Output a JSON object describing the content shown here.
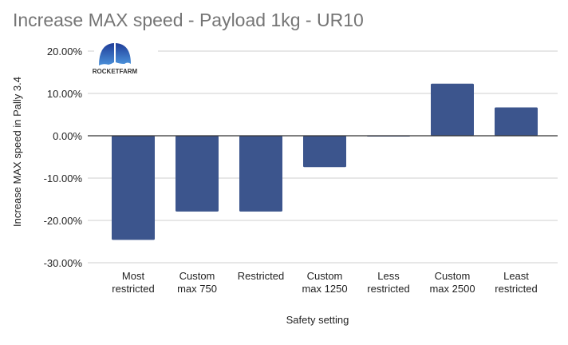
{
  "chart_data": {
    "type": "bar",
    "title": "Increase MAX speed - Payload 1kg - UR10",
    "xlabel": "Safety setting",
    "ylabel": "Increase MAX speed in Pally 3.4",
    "categories": [
      [
        "Most",
        "restricted"
      ],
      [
        "Custom",
        "max 750"
      ],
      [
        "Restricted"
      ],
      [
        "Custom",
        "max 1250"
      ],
      [
        "Less",
        "restricted"
      ],
      [
        "Custom",
        "max 2500"
      ],
      [
        "Least",
        "restricted"
      ]
    ],
    "values": [
      -24.6,
      -17.9,
      -17.9,
      -7.4,
      -0.1,
      12.3,
      6.7
    ],
    "ylim": [
      -30,
      20
    ],
    "yticks": [
      20,
      10,
      0,
      -10,
      -20,
      -30
    ],
    "ytick_labels": [
      "20.00%",
      "10.00%",
      "0.00%",
      "-10.00%",
      "-20.00%",
      "-30.00%"
    ],
    "grid": true,
    "legend": "none",
    "bar_color": "#3c558d"
  },
  "logo": {
    "text": "ROCKETFARM"
  }
}
